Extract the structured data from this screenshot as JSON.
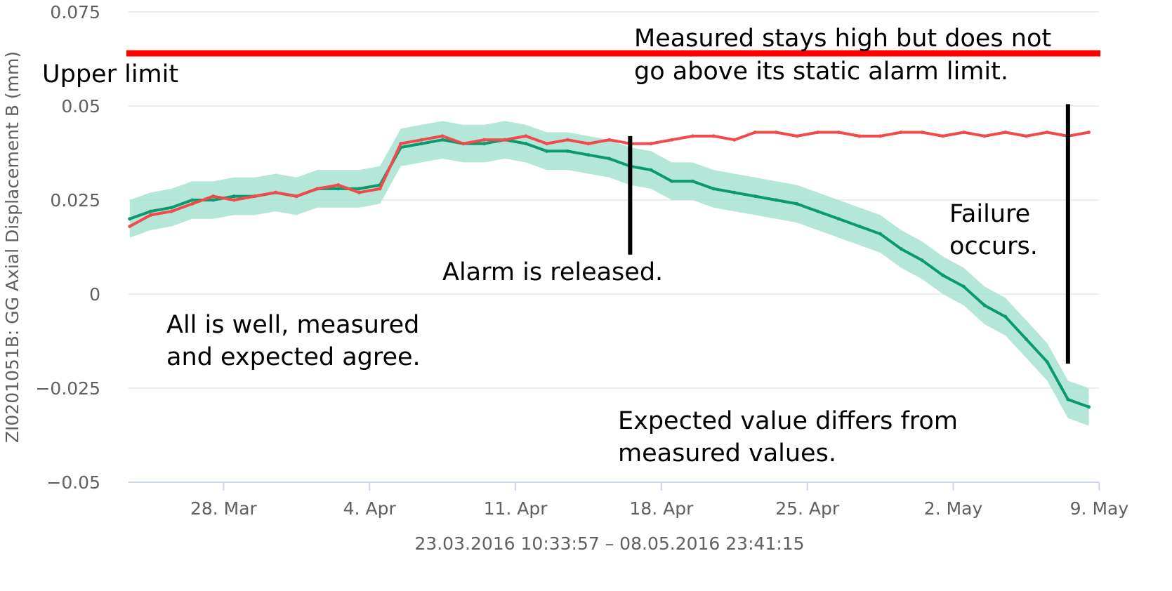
{
  "chart_data": {
    "type": "line",
    "ylabel": "ZI0201051B: GG Axial Displacement B (mm)",
    "xlabel": "23.03.2016 10:33:57 – 08.05.2016 23:41:15",
    "x_range": [
      "2016-03-23",
      "2016-05-08"
    ],
    "ylim": [
      -0.05,
      0.075
    ],
    "yticks": [
      "0.075",
      "0.05",
      "0.025",
      "0",
      "−0.025",
      "−0.05"
    ],
    "ytick_values": [
      0.075,
      0.05,
      0.025,
      0,
      -0.025,
      -0.05
    ],
    "xticks": [
      "28. Mar",
      "4. Apr",
      "11. Apr",
      "18. Apr",
      "25. Apr",
      "2. May",
      "9. May"
    ],
    "xtick_dates": [
      "2016-03-28",
      "2016-04-04",
      "2016-04-11",
      "2016-04-18",
      "2016-04-25",
      "2016-05-02",
      "2016-05-09"
    ],
    "grid": true,
    "colors": {
      "measured": "#f04a4a",
      "expected": "#0a9a6e",
      "band": "#a8e3d1",
      "limit": "#ff0000",
      "marker": "#000000"
    },
    "upper_limit": 0.064,
    "series": [
      {
        "role": "measured",
        "x": [
          "2016-03-23",
          "2016-03-24",
          "2016-03-25",
          "2016-03-26",
          "2016-03-27",
          "2016-03-28",
          "2016-03-29",
          "2016-03-30",
          "2016-03-31",
          "2016-04-01",
          "2016-04-02",
          "2016-04-03",
          "2016-04-04",
          "2016-04-05",
          "2016-04-06",
          "2016-04-07",
          "2016-04-08",
          "2016-04-09",
          "2016-04-10",
          "2016-04-11",
          "2016-04-12",
          "2016-04-13",
          "2016-04-14",
          "2016-04-15",
          "2016-04-16",
          "2016-04-17",
          "2016-04-18",
          "2016-04-19",
          "2016-04-20",
          "2016-04-21",
          "2016-04-22",
          "2016-04-23",
          "2016-04-24",
          "2016-04-25",
          "2016-04-26",
          "2016-04-27",
          "2016-04-28",
          "2016-04-29",
          "2016-04-30",
          "2016-05-01",
          "2016-05-02",
          "2016-05-03",
          "2016-05-04",
          "2016-05-05",
          "2016-05-06",
          "2016-05-07",
          "2016-05-08"
        ],
        "values": [
          0.018,
          0.021,
          0.022,
          0.024,
          0.026,
          0.025,
          0.026,
          0.027,
          0.026,
          0.028,
          0.029,
          0.027,
          0.028,
          0.04,
          0.041,
          0.042,
          0.04,
          0.041,
          0.041,
          0.042,
          0.04,
          0.041,
          0.04,
          0.041,
          0.04,
          0.04,
          0.041,
          0.042,
          0.042,
          0.041,
          0.043,
          0.043,
          0.042,
          0.043,
          0.043,
          0.042,
          0.042,
          0.043,
          0.043,
          0.042,
          0.043,
          0.042,
          0.043,
          0.042,
          0.043,
          0.042,
          0.043
        ]
      },
      {
        "role": "expected",
        "x": [
          "2016-03-23",
          "2016-03-24",
          "2016-03-25",
          "2016-03-26",
          "2016-03-27",
          "2016-03-28",
          "2016-03-29",
          "2016-03-30",
          "2016-03-31",
          "2016-04-01",
          "2016-04-02",
          "2016-04-03",
          "2016-04-04",
          "2016-04-05",
          "2016-04-06",
          "2016-04-07",
          "2016-04-08",
          "2016-04-09",
          "2016-04-10",
          "2016-04-11",
          "2016-04-12",
          "2016-04-13",
          "2016-04-14",
          "2016-04-15",
          "2016-04-16",
          "2016-04-17",
          "2016-04-18",
          "2016-04-19",
          "2016-04-20",
          "2016-04-21",
          "2016-04-22",
          "2016-04-23",
          "2016-04-24",
          "2016-04-25",
          "2016-04-26",
          "2016-04-27",
          "2016-04-28",
          "2016-04-29",
          "2016-04-30",
          "2016-05-01",
          "2016-05-02",
          "2016-05-03",
          "2016-05-04",
          "2016-05-05",
          "2016-05-06",
          "2016-05-07",
          "2016-05-08"
        ],
        "values": [
          0.02,
          0.022,
          0.023,
          0.025,
          0.025,
          0.026,
          0.026,
          0.027,
          0.026,
          0.028,
          0.028,
          0.028,
          0.029,
          0.039,
          0.04,
          0.041,
          0.04,
          0.04,
          0.041,
          0.04,
          0.038,
          0.038,
          0.037,
          0.036,
          0.034,
          0.033,
          0.03,
          0.03,
          0.028,
          0.027,
          0.026,
          0.025,
          0.024,
          0.022,
          0.02,
          0.018,
          0.016,
          0.012,
          0.009,
          0.005,
          0.002,
          -0.003,
          -0.006,
          -0.012,
          -0.018,
          -0.028,
          -0.03
        ]
      }
    ]
  },
  "annotations": {
    "upper_limit": "Upper limit",
    "measured_high_line1": "Measured stays high but does not",
    "measured_high_line2": "go above its static alarm limit.",
    "alarm_released": "Alarm is released.",
    "failure_line1": "Failure",
    "failure_line2": "occurs.",
    "all_well_line1": "All is well, measured",
    "all_well_line2": "and expected agree.",
    "expected_differs_line1": "Expected value differs from",
    "expected_differs_line2": "measured values."
  },
  "markers": {
    "alarm_release_date": "2016-04-16",
    "alarm_release_y": [
      0.0105,
      0.042
    ],
    "failure_date": "2016-05-07",
    "failure_y": [
      -0.0185,
      0.0505
    ]
  }
}
